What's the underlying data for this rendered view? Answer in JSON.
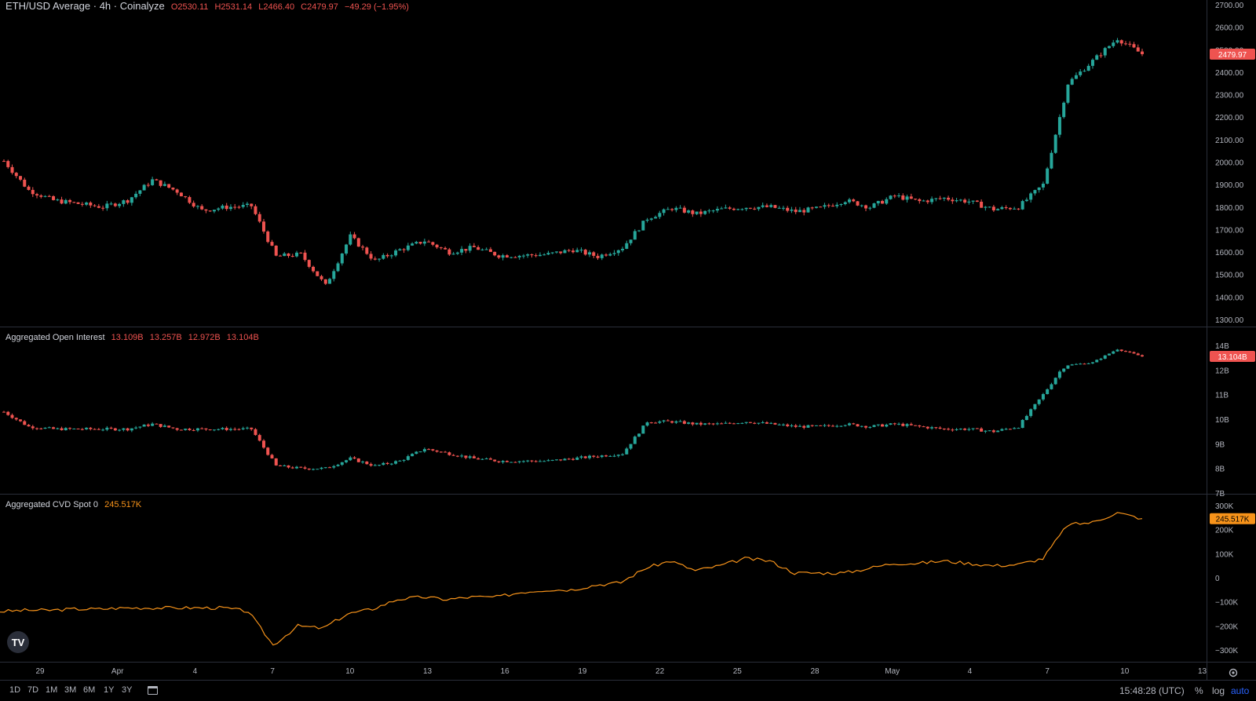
{
  "header": {
    "symbol": "ETH/USD Average · 4h · Coinalyze",
    "o": "O2530.11",
    "h": "H2531.14",
    "l": "L2466.40",
    "c": "C2479.97",
    "chg": "−49.29 (−1.95%)"
  },
  "oi_legend": {
    "title": "Aggregated Open Interest",
    "v1": "13.109B",
    "v2": "13.257B",
    "v3": "12.972B",
    "v4": "13.104B"
  },
  "cvd_legend": {
    "title": "Aggregated CVD Spot 0",
    "value": "245.517K"
  },
  "price_axis": [
    "2700.00",
    "2600.00",
    "2500.00",
    "2400.00",
    "2300.00",
    "2200.00",
    "2100.00",
    "2000.00",
    "1900.00",
    "1800.00",
    "1700.00",
    "1600.00",
    "1500.00",
    "1400.00",
    "1300.00"
  ],
  "oi_axis": [
    "14B",
    "12B",
    "11B",
    "10B",
    "9B",
    "8B",
    "7B"
  ],
  "cvd_axis": [
    "300K",
    "200K",
    "100K",
    "0",
    "−100K",
    "−200K",
    "−300K"
  ],
  "time_axis": [
    "29",
    "Apr",
    "4",
    "7",
    "10",
    "13",
    "16",
    "19",
    "22",
    "25",
    "28",
    "May",
    "4",
    "7",
    "10",
    "13"
  ],
  "current_labels": {
    "price": "2479.97",
    "oi": "13.104B",
    "cvd": "245.517K"
  },
  "timeframes": [
    "1D",
    "7D",
    "1M",
    "3M",
    "6M",
    "1Y",
    "3Y"
  ],
  "time_readout": "15:48:28 (UTC)",
  "options": {
    "percent": "%",
    "log": "log",
    "auto": "auto"
  },
  "colors": {
    "up": "#26a69a",
    "down": "#ef5350",
    "cvd": "#f7931a",
    "grid": "#2a2e39",
    "text": "#b2b5be",
    "auto": "#2962ff"
  },
  "chart_data": [
    {
      "type": "candlestick",
      "title": "ETH/USD Average · 4h · Coinalyze",
      "x": [
        "Mar 27",
        "Mar 28",
        "Mar 29",
        "Mar 30",
        "Mar 31",
        "Apr 1",
        "Apr 2",
        "Apr 3",
        "Apr 4",
        "Apr 5",
        "Apr 6",
        "Apr 7",
        "Apr 8",
        "Apr 9",
        "Apr 10",
        "Apr 11",
        "Apr 12",
        "Apr 13",
        "Apr 14",
        "Apr 15",
        "Apr 16",
        "Apr 17",
        "Apr 18",
        "Apr 19",
        "Apr 20",
        "Apr 21",
        "Apr 22",
        "Apr 23",
        "Apr 24",
        "Apr 25",
        "Apr 26",
        "Apr 27",
        "Apr 28",
        "Apr 29",
        "Apr 30",
        "May 1",
        "May 2",
        "May 3",
        "May 4",
        "May 5",
        "May 6",
        "May 7",
        "May 8",
        "May 9",
        "May 10",
        "May 11",
        "May 12"
      ],
      "close": [
        2005,
        1875,
        1830,
        1815,
        1800,
        1830,
        1920,
        1870,
        1785,
        1800,
        1805,
        1580,
        1590,
        1450,
        1670,
        1560,
        1610,
        1650,
        1600,
        1620,
        1585,
        1585,
        1590,
        1610,
        1580,
        1620,
        1750,
        1795,
        1770,
        1790,
        1800,
        1800,
        1780,
        1795,
        1830,
        1800,
        1850,
        1825,
        1840,
        1825,
        1790,
        1800,
        1900,
        2350,
        2450,
        2550,
        2479.97
      ],
      "ylim": [
        1300,
        2700
      ]
    },
    {
      "type": "candlestick",
      "title": "Aggregated Open Interest",
      "unit": "B",
      "x": [
        "Mar 27",
        "Mar 28",
        "Mar 29",
        "Mar 30",
        "Mar 31",
        "Apr 1",
        "Apr 2",
        "Apr 3",
        "Apr 4",
        "Apr 5",
        "Apr 6",
        "Apr 7",
        "Apr 8",
        "Apr 9",
        "Apr 10",
        "Apr 11",
        "Apr 12",
        "Apr 13",
        "Apr 14",
        "Apr 15",
        "Apr 16",
        "Apr 17",
        "Apr 18",
        "Apr 19",
        "Apr 20",
        "Apr 21",
        "Apr 22",
        "Apr 23",
        "Apr 24",
        "Apr 25",
        "Apr 26",
        "Apr 27",
        "Apr 28",
        "Apr 29",
        "Apr 30",
        "May 1",
        "May 2",
        "May 3",
        "May 4",
        "May 5",
        "May 6",
        "May 7",
        "May 8",
        "May 9",
        "May 10",
        "May 11",
        "May 12"
      ],
      "close": [
        10.3,
        9.7,
        9.6,
        9.6,
        9.6,
        9.6,
        9.8,
        9.6,
        9.6,
        9.6,
        9.6,
        8.1,
        8.0,
        8.0,
        8.4,
        8.1,
        8.3,
        8.8,
        8.6,
        8.4,
        8.3,
        8.3,
        8.3,
        8.4,
        8.5,
        8.6,
        9.9,
        9.9,
        9.8,
        9.8,
        9.9,
        9.8,
        9.7,
        9.7,
        9.8,
        9.7,
        9.8,
        9.7,
        9.6,
        9.6,
        9.5,
        9.7,
        11.0,
        12.4,
        12.6,
        13.7,
        13.104
      ],
      "ylim": [
        7,
        14.5
      ]
    },
    {
      "type": "line",
      "title": "Aggregated CVD Spot 0",
      "unit": "K",
      "x": [
        "Mar 27",
        "Mar 28",
        "Mar 29",
        "Mar 30",
        "Mar 31",
        "Apr 1",
        "Apr 2",
        "Apr 3",
        "Apr 4",
        "Apr 5",
        "Apr 6",
        "Apr 7",
        "Apr 8",
        "Apr 9",
        "Apr 10",
        "Apr 11",
        "Apr 12",
        "Apr 13",
        "Apr 14",
        "Apr 15",
        "Apr 16",
        "Apr 17",
        "Apr 18",
        "Apr 19",
        "Apr 20",
        "Apr 21",
        "Apr 22",
        "Apr 23",
        "Apr 24",
        "Apr 25",
        "Apr 26",
        "Apr 27",
        "Apr 28",
        "Apr 29",
        "Apr 30",
        "May 1",
        "May 2",
        "May 3",
        "May 4",
        "May 5",
        "May 6",
        "May 7",
        "May 8",
        "May 9",
        "May 10",
        "May 11",
        "May 12"
      ],
      "values": [
        -140,
        -135,
        -135,
        -130,
        -130,
        -125,
        -125,
        -125,
        -125,
        -125,
        -140,
        -280,
        -200,
        -210,
        -150,
        -130,
        -90,
        -80,
        -90,
        -80,
        -80,
        -60,
        -50,
        -50,
        -30,
        -20,
        40,
        70,
        30,
        50,
        80,
        70,
        20,
        20,
        20,
        40,
        60,
        60,
        70,
        60,
        50,
        55,
        80,
        220,
        230,
        270,
        245.517
      ],
      "ylim": [
        -330,
        330
      ]
    }
  ]
}
